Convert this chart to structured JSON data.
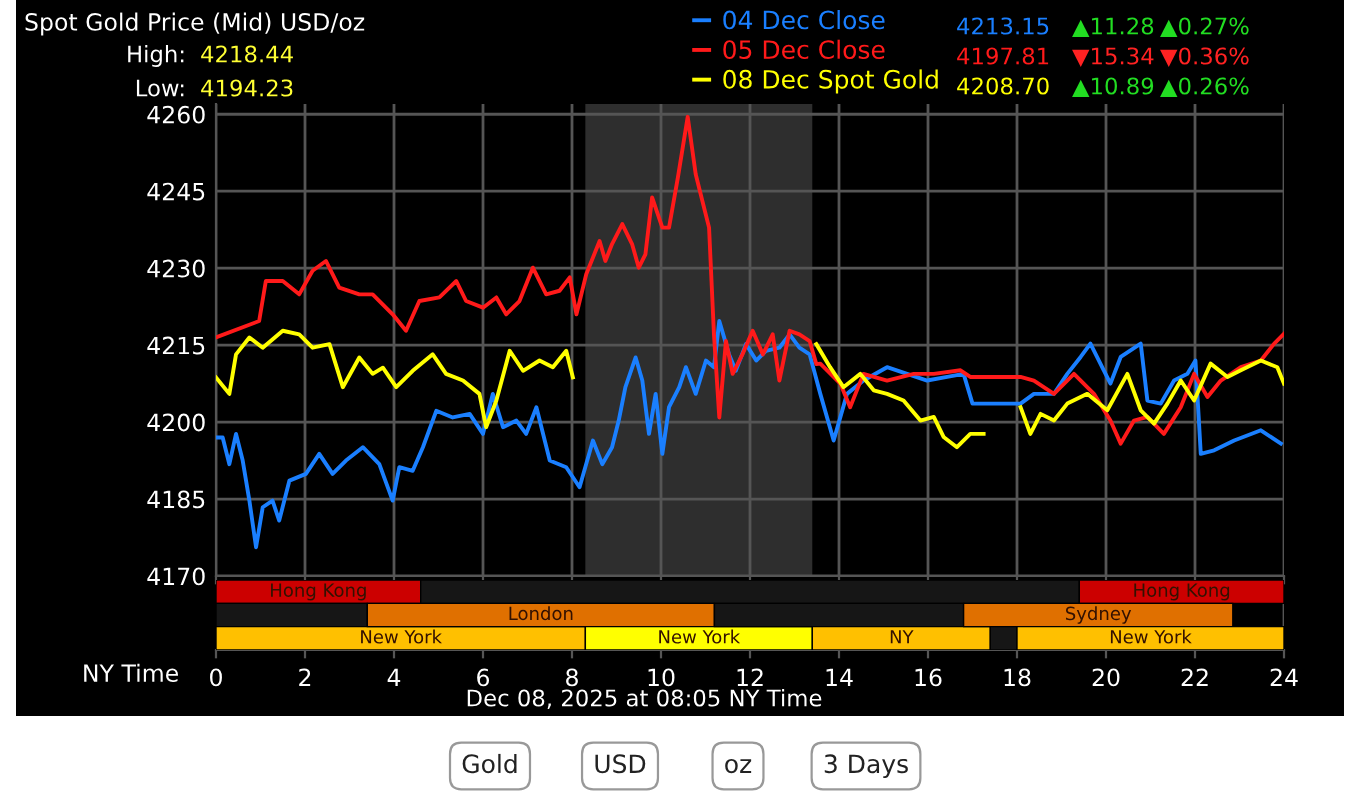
{
  "chart_data": [
    {
      "type": "line",
      "title": "Spot Gold Price (Mid) USD/oz",
      "xlim": [
        0,
        24
      ],
      "xticks": [
        0,
        2,
        4,
        6,
        8,
        10,
        12,
        14,
        16,
        18,
        20,
        22,
        24
      ],
      "ylim": [
        4170,
        4262
      ],
      "yticks": [
        4170,
        4185,
        4200,
        4215,
        4230,
        4245,
        4260
      ],
      "grid": true,
      "legend": "top right",
      "tick_labels": "y",
      "bands": [
        {
          "axis": "x",
          "from": 8.3,
          "to": 13.4,
          "color": "#2e2e2e"
        }
      ],
      "annotations": [
        "High:",
        "4218.44",
        "Low:",
        "4194.23",
        "4213.15",
        "▲11.28",
        "▲0.27%",
        "4197.81",
        "▼15.34",
        "▼0.36%",
        "4208.70",
        "▲10.89",
        "▲0.26%",
        "Dec 08, 2025 at 08:05 NY Time",
        "Gold",
        "USD",
        "oz",
        "3 Days"
      ],
      "series": [
        {
          "name": "04 Dec Close",
          "color": "#1a7fff",
          "x": [
            0.0,
            0.15,
            0.3,
            0.45,
            0.6,
            0.75,
            0.9,
            1.05,
            1.27,
            1.42,
            1.65,
            2.02,
            2.32,
            2.62,
            2.92,
            3.3,
            3.67,
            3.97,
            4.12,
            4.42,
            4.65,
            4.95,
            5.32,
            5.7,
            6.0,
            6.22,
            6.45,
            6.75,
            6.97,
            7.2,
            7.5,
            7.87,
            8.17,
            8.47,
            8.68,
            8.9,
            9.05,
            9.2,
            9.43,
            9.58,
            9.73,
            9.88,
            10.03,
            10.18,
            10.41,
            10.56,
            10.78,
            11.01,
            11.19,
            11.31,
            11.53,
            11.68,
            11.91,
            12.14,
            12.36,
            12.66,
            12.89,
            13.11,
            13.34,
            13.58,
            13.88,
            14.18,
            14.55,
            15.08,
            15.53,
            15.98,
            16.43,
            16.8,
            17.0,
            18.08,
            18.38,
            18.83,
            19.13,
            19.43,
            19.65,
            19.95,
            20.1,
            20.33,
            20.78,
            20.93,
            21.23,
            21.53,
            21.83,
            22.01,
            22.13,
            22.43,
            22.88,
            23.48,
            23.93
          ],
          "values": [
            4197.0,
            4197.0,
            4191.8,
            4197.7,
            4192.5,
            4184.7,
            4175.6,
            4183.4,
            4184.7,
            4180.8,
            4188.6,
            4189.9,
            4193.8,
            4189.9,
            4192.5,
            4195.1,
            4191.8,
            4184.7,
            4191.2,
            4190.5,
            4195.1,
            4202.2,
            4200.9,
            4201.6,
            4197.7,
            4205.5,
            4199.0,
            4200.3,
            4197.7,
            4202.9,
            4192.5,
            4191.2,
            4187.3,
            4196.4,
            4191.8,
            4195.1,
            4200.3,
            4206.8,
            4212.6,
            4208.1,
            4197.7,
            4205.5,
            4193.8,
            4202.9,
            4206.8,
            4210.7,
            4205.5,
            4212.0,
            4210.7,
            4219.7,
            4213.2,
            4210.0,
            4215.2,
            4212.0,
            4213.9,
            4214.5,
            4217.1,
            4214.5,
            4213.2,
            4205.5,
            4196.4,
            4205.5,
            4208.1,
            4210.7,
            4209.4,
            4208.1,
            4208.8,
            4209.4,
            4203.6,
            4203.6,
            4205.5,
            4205.5,
            4209.4,
            4212.7,
            4215.3,
            4210.1,
            4207.5,
            4212.7,
            4215.3,
            4204.2,
            4203.6,
            4208.1,
            4209.4,
            4212.0,
            4193.8,
            4194.5,
            4196.4,
            4198.4,
            4195.8
          ]
        },
        {
          "name": "05 Dec Close",
          "color": "#ff1a1a",
          "x": [
            0.0,
            0.97,
            1.12,
            1.5,
            1.87,
            2.17,
            2.47,
            2.77,
            3.22,
            3.52,
            3.97,
            4.27,
            4.57,
            5.02,
            5.4,
            5.62,
            6.0,
            6.3,
            6.52,
            6.82,
            7.12,
            7.42,
            7.72,
            7.95,
            8.1,
            8.32,
            8.62,
            8.75,
            8.9,
            9.13,
            9.35,
            9.5,
            9.65,
            9.8,
            10.03,
            10.18,
            10.38,
            10.6,
            10.78,
            10.93,
            11.08,
            11.19,
            11.31,
            11.46,
            11.61,
            11.83,
            12.06,
            12.29,
            12.51,
            12.66,
            12.89,
            13.11,
            13.34,
            13.49,
            13.58,
            14.03,
            14.25,
            14.55,
            15.08,
            15.68,
            16.13,
            16.73,
            16.95,
            18.08,
            18.38,
            18.83,
            19.28,
            19.73,
            20.1,
            20.33,
            20.63,
            20.93,
            21.3,
            21.68,
            21.98,
            22.28,
            22.58,
            23.03,
            23.48,
            23.78,
            24.0
          ],
          "values": [
            4216.5,
            4219.7,
            4227.5,
            4227.5,
            4224.9,
            4229.5,
            4231.4,
            4226.2,
            4224.9,
            4224.9,
            4221.0,
            4217.8,
            4223.6,
            4224.3,
            4227.5,
            4223.6,
            4222.3,
            4224.3,
            4221.0,
            4223.6,
            4230.1,
            4224.9,
            4225.6,
            4228.2,
            4221.0,
            4228.8,
            4235.3,
            4231.4,
            4234.7,
            4238.6,
            4234.7,
            4230.1,
            4232.7,
            4243.8,
            4237.9,
            4237.9,
            4247.7,
            4259.5,
            4248.3,
            4243.1,
            4237.9,
            4217.1,
            4200.9,
            4215.8,
            4209.4,
            4213.2,
            4217.8,
            4213.2,
            4217.1,
            4208.1,
            4217.8,
            4217.1,
            4215.8,
            4211.3,
            4211.4,
            4207.5,
            4202.9,
            4209.4,
            4208.1,
            4209.4,
            4209.4,
            4210.1,
            4208.8,
            4208.8,
            4208.1,
            4205.5,
            4209.4,
            4205.5,
            4200.3,
            4195.8,
            4200.3,
            4201.0,
            4197.7,
            4202.9,
            4209.4,
            4204.9,
            4208.1,
            4210.7,
            4212.0,
            4215.3,
            4217.2
          ]
        },
        {
          "name": "08 Dec Spot Gold",
          "color": "#ffff00",
          "x": [
            0.0,
            0.3,
            0.45,
            0.75,
            1.05,
            1.5,
            1.87,
            2.17,
            2.55,
            2.85,
            3.22,
            3.52,
            3.75,
            4.05,
            4.42,
            4.87,
            5.17,
            5.55,
            5.92,
            6.07,
            6.3,
            6.6,
            6.9,
            7.27,
            7.57,
            7.87,
            8.02,
            10.0,
            13.49,
            13.8,
            14.1,
            14.48,
            14.78,
            15.08,
            15.45,
            15.83,
            16.13,
            16.35,
            16.65,
            16.95,
            17.25,
            17.6,
            18.08,
            18.3,
            18.53,
            18.83,
            19.13,
            19.58,
            20.03,
            20.48,
            20.78,
            21.08,
            21.38,
            21.68,
            21.98,
            22.35,
            22.73,
            23.03,
            23.48,
            23.85,
            24.0
          ],
          "values": [
            4208.7,
            4205.5,
            4213.2,
            4216.5,
            4214.5,
            4217.8,
            4217.1,
            4214.5,
            4215.2,
            4206.8,
            4212.6,
            4209.4,
            4210.6,
            4206.8,
            4210.0,
            4213.2,
            4209.4,
            4208.1,
            4205.5,
            4199.0,
            4204.2,
            4213.9,
            4210.0,
            4212.0,
            4210.7,
            4213.9,
            4208.7,
            null,
            4215.2,
            4210.7,
            4206.8,
            4209.4,
            4206.2,
            4205.5,
            4204.2,
            4200.3,
            4201.0,
            4197.1,
            4195.1,
            4197.7,
            4197.7,
            null,
            4202.9,
            4197.7,
            4201.6,
            4200.3,
            4203.6,
            4205.5,
            4202.3,
            4209.4,
            4202.3,
            4199.7,
            4203.6,
            4208.1,
            4204.2,
            4211.4,
            4208.8,
            4210.1,
            4212.0,
            4210.7,
            4207.5
          ]
        }
      ]
    },
    {
      "type": "bar",
      "orientation": "horizontal",
      "xlabel": "NY Time",
      "categories": [
        null,
        null,
        null
      ],
      "xlim": [
        0,
        24
      ],
      "xticks": [
        0,
        2,
        4,
        6,
        8,
        10,
        12,
        14,
        16,
        18,
        20,
        22,
        24
      ],
      "grid": "x",
      "tick_labels": "x",
      "stacked": true,
      "series": [
        {
          "colors": [
            "#cc0000",
            "#161616",
            "#ffc000"
          ],
          "values": [
            4.6,
            3.4,
            8.3
          ],
          "value_labels": [
            "Hong Kong",
            null,
            "New York"
          ]
        },
        {
          "colors": [
            "#161616",
            "#e07000",
            "#ffff00"
          ],
          "values": [
            14.8,
            7.8,
            5.1
          ],
          "value_labels": [
            null,
            "London",
            "New York"
          ]
        },
        {
          "colors": [
            "#cc0000",
            "#161616",
            "#ffc000"
          ],
          "values": [
            4.6,
            5.6,
            4.0
          ],
          "value_labels": [
            "Hong Kong",
            null,
            "NY"
          ]
        },
        {
          "colors": [
            null,
            "#e07000",
            "#161616"
          ],
          "values": [
            null,
            6.05,
            0.6
          ],
          "value_labels": [
            null,
            "Sydney",
            null
          ]
        },
        {
          "colors": [
            null,
            null,
            "#ffc000"
          ],
          "values": [
            null,
            null,
            6
          ],
          "value_labels": [
            null,
            null,
            "New York"
          ]
        }
      ]
    }
  ]
}
